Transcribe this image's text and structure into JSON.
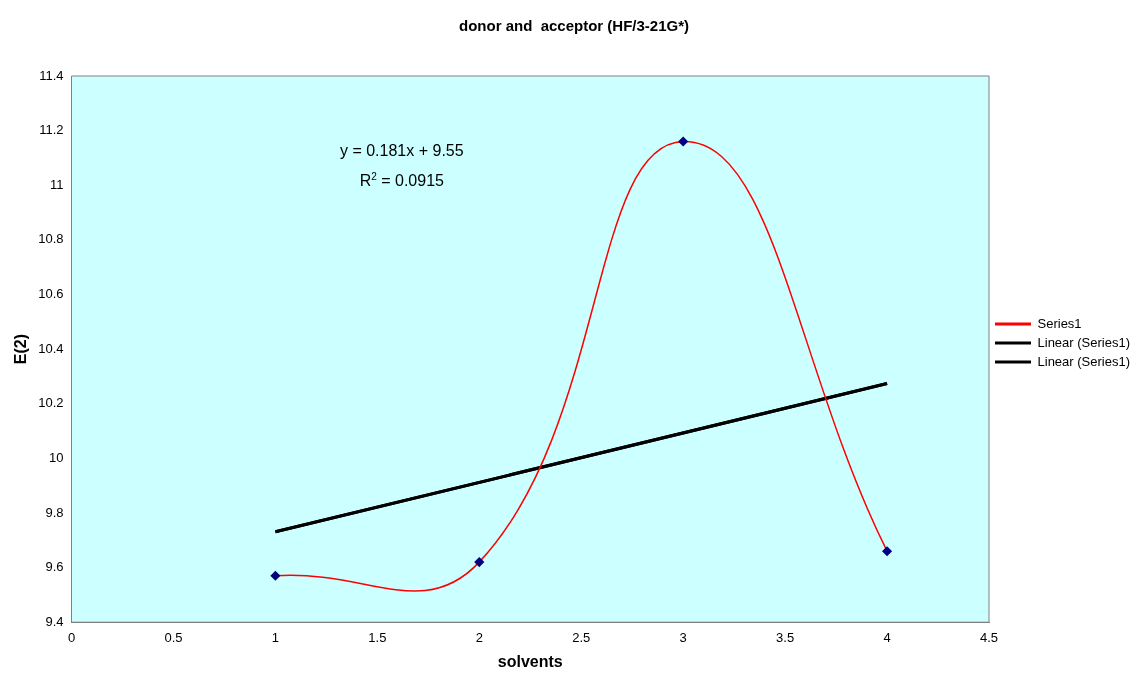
{
  "chart_data": {
    "type": "scatter",
    "title": "donor and  acceptor (HF/3-21G*)",
    "xlabel": "solvents",
    "ylabel": "E(2)",
    "xlim": [
      0,
      4.5
    ],
    "xticks": [
      0,
      0.5,
      1,
      1.5,
      2,
      2.5,
      3,
      3.5,
      4,
      4.5
    ],
    "ylim": [
      9.4,
      11.4
    ],
    "yticks": [
      9.4,
      9.6,
      9.8,
      10,
      10.2,
      10.4,
      10.6,
      10.8,
      11,
      11.2,
      11.4
    ],
    "grid": false,
    "legend": "right",
    "marker": "diamond",
    "series": [
      {
        "name": "Series1",
        "type": "line",
        "color": "#ff0000",
        "colors": [
          "#000080",
          "#000080",
          "#000080",
          "#000080"
        ],
        "x": [
          1,
          2,
          3,
          4
        ],
        "values": [
          9.57,
          9.62,
          11.16,
          9.66
        ]
      },
      {
        "name": "Linear (Series1)",
        "type": "line",
        "color": "#000000",
        "marker": "none",
        "x": [
          1,
          4
        ],
        "values": [
          9.731,
          10.274
        ]
      },
      {
        "name": "Linear (Series1)",
        "type": "line",
        "color": "#000000",
        "marker": "none",
        "x": [
          1,
          4
        ],
        "values": [
          9.731,
          10.274
        ]
      }
    ],
    "annotations": [
      "y = 0.181x + 9.55",
      "R$^{2}$ = 0.0915"
    ]
  }
}
